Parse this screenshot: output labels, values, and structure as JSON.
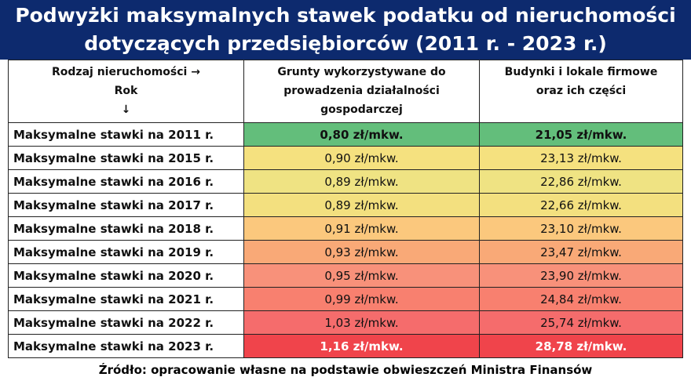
{
  "title": [
    "Podwyżki maksymalnych stawek podatku od nieruchomości",
    "dotyczących przedsiębiorców (2011 r. - 2023 r.)"
  ],
  "table": {
    "header": [
      [
        "Rodzaj nieruchomości →",
        "Rok",
        "↓"
      ],
      [
        "Grunty wykorzystywane do",
        "prowadzenia działalności",
        "gospodarczej"
      ],
      [
        "Budynki i lokale firmowe",
        "oraz ich części"
      ]
    ],
    "rows": [
      [
        "Maksymalne stawki na 2011 r.",
        "0,80 zł/mkw.",
        "21,05 zł/mkw."
      ],
      [
        "Maksymalne stawki na 2015 r.",
        "0,90 zł/mkw.",
        "23,13 zł/mkw."
      ],
      [
        "Maksymalne stawki na 2016 r.",
        "0,89 zł/mkw.",
        "22,86 zł/mkw."
      ],
      [
        "Maksymalne stawki na 2017 r.",
        "0,89 zł/mkw.",
        "22,66 zł/mkw."
      ],
      [
        "Maksymalne stawki na 2018 r.",
        "0,91 zł/mkw.",
        "23,10 zł/mkw."
      ],
      [
        "Maksymalne stawki na 2019 r.",
        "0,93 zł/mkw.",
        "23,47 zł/mkw."
      ],
      [
        "Maksymalne stawki na 2020 r.",
        "0,95 zł/mkw.",
        "23,90 zł/mkw."
      ],
      [
        "Maksymalne stawki na 2021 r.",
        "0,99 zł/mkw.",
        "24,84 zł/mkw."
      ],
      [
        "Maksymalne stawki na 2022 r.",
        "1,03 zł/mkw.",
        "25,74 zł/mkw."
      ],
      [
        "Maksymalne stawki na 2023 r.",
        "1,16 zł/mkw.",
        "28,78 zł/mkw."
      ]
    ]
  },
  "source": "Źródło: opracowanie własne na podstawie obwieszczeń Ministra Finansów"
}
